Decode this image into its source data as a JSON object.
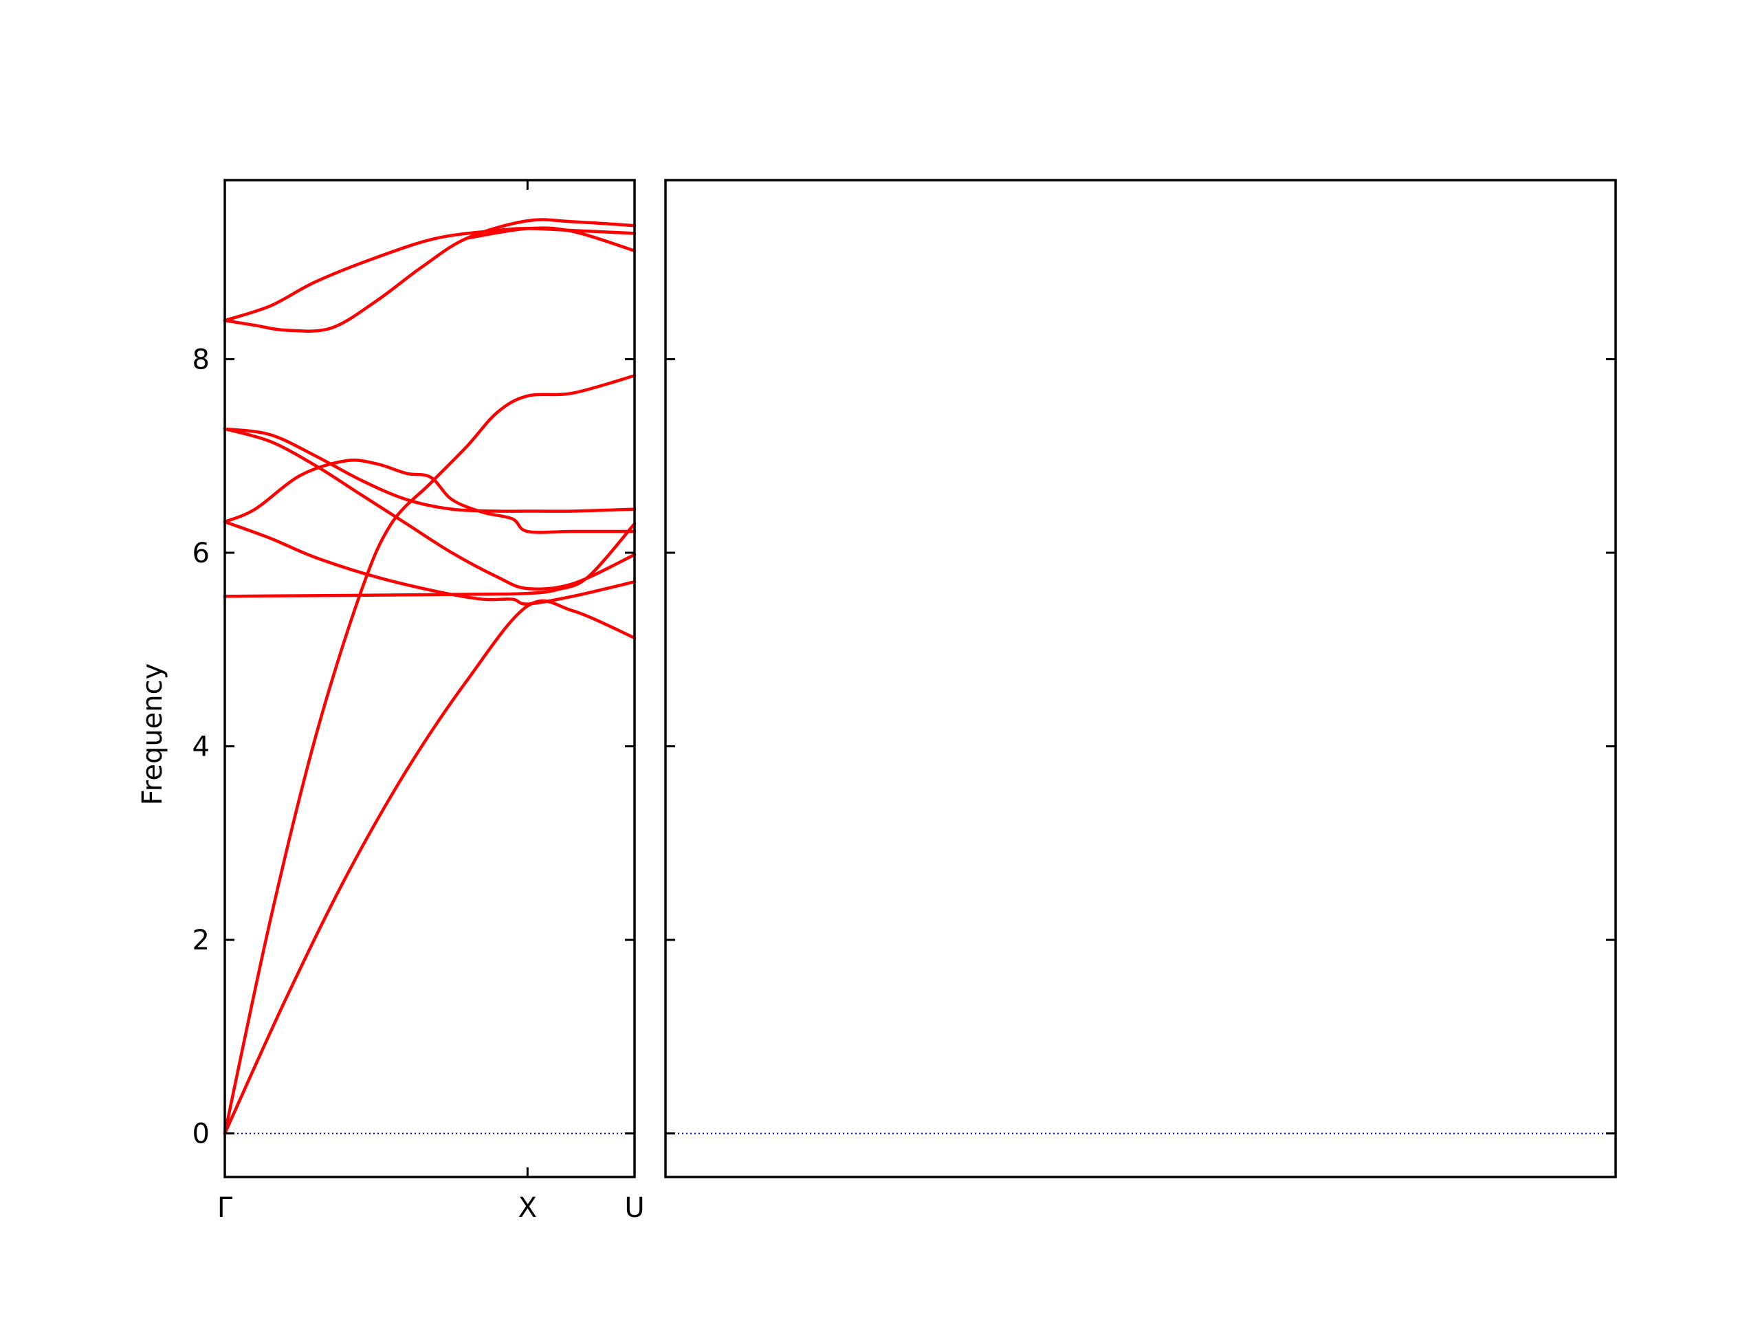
{
  "chart_data": {
    "type": "line",
    "title": "",
    "ylabel": "Frequency",
    "ylim": [
      -0.45,
      9.85
    ],
    "y_ticks": [
      0,
      2,
      4,
      6,
      8
    ],
    "grid": false,
    "legend": "none",
    "colors": {
      "band": "#ff0000",
      "zero_line": "#0000aa",
      "axis": "#000000"
    },
    "panels": [
      {
        "name": "left",
        "xlim": [
          0,
          1.3536
        ],
        "x_ticks": [
          {
            "x": 0,
            "label": "Γ"
          },
          {
            "x": 1.0,
            "label": "X"
          },
          {
            "x": 1.3536,
            "label": "U"
          }
        ],
        "bands": [
          {
            "x": [
              0,
              0.2,
              0.4,
              0.6,
              0.8,
              1.0,
              1.15,
              1.3536
            ],
            "y": [
              0,
              1.38,
              2.65,
              3.75,
              4.68,
              5.45,
              5.4,
              5.12
            ]
          },
          {
            "x": [
              0,
              0.15,
              0.3,
              0.45,
              0.55,
              0.68,
              0.8,
              0.9,
              1.0,
              1.15,
              1.3536
            ],
            "y": [
              0,
              2.2,
              4.1,
              5.6,
              6.3,
              6.72,
              7.1,
              7.45,
              7.62,
              7.65,
              7.83
            ]
          },
          {
            "x": [
              0,
              0.15,
              0.3,
              0.5,
              0.7,
              0.85,
              0.95,
              1.0,
              1.15,
              1.3536
            ],
            "y": [
              6.32,
              6.15,
              5.95,
              5.75,
              5.6,
              5.52,
              5.52,
              5.47,
              5.55,
              5.7
            ]
          },
          {
            "x": [
              0,
              0.1,
              0.25,
              0.4,
              0.5,
              0.6,
              0.68,
              0.75,
              0.85,
              0.95,
              1.0,
              1.15,
              1.3536
            ],
            "y": [
              6.32,
              6.45,
              6.8,
              6.95,
              6.92,
              6.82,
              6.78,
              6.55,
              6.42,
              6.35,
              6.22,
              6.22,
              6.22
            ]
          },
          {
            "x": [
              0,
              0.15,
              0.3,
              0.45,
              0.6,
              0.75,
              0.9,
              1.0,
              1.15,
              1.3536
            ],
            "y": [
              7.28,
              7.22,
              7.0,
              6.75,
              6.55,
              6.45,
              6.43,
              6.43,
              6.43,
              6.45
            ]
          },
          {
            "x": [
              0,
              0.15,
              0.3,
              0.45,
              0.6,
              0.75,
              0.9,
              1.0,
              1.15,
              1.3536
            ],
            "y": [
              7.28,
              7.15,
              6.9,
              6.6,
              6.3,
              6.0,
              5.75,
              5.63,
              5.68,
              5.98
            ]
          },
          {
            "x": [
              0,
              0.8,
              1.0,
              1.1,
              1.2,
              1.3536
            ],
            "y": [
              5.55,
              5.57,
              5.58,
              5.62,
              5.75,
              6.3
            ]
          },
          {
            "x": [
              0,
              0.1,
              0.2,
              0.35,
              0.5,
              0.65,
              0.8,
              1.0,
              1.15,
              1.3536
            ],
            "y": [
              8.4,
              8.35,
              8.3,
              8.32,
              8.6,
              8.95,
              9.25,
              9.43,
              9.42,
              9.38
            ]
          },
          {
            "x": [
              0,
              0.15,
              0.3,
              0.5,
              0.7,
              0.9,
              1.0,
              1.15,
              1.3536
            ],
            "y": [
              8.4,
              8.55,
              8.8,
              9.05,
              9.25,
              9.33,
              9.35,
              9.33,
              9.3
            ]
          },
          {
            "x": [
              0.8,
              1.0,
              1.15,
              1.3536
            ],
            "y": [
              9.25,
              9.35,
              9.32,
              9.12
            ]
          }
        ]
      },
      {
        "name": "right",
        "xlim": [
          0,
          3.0
        ]
      }
    ]
  }
}
